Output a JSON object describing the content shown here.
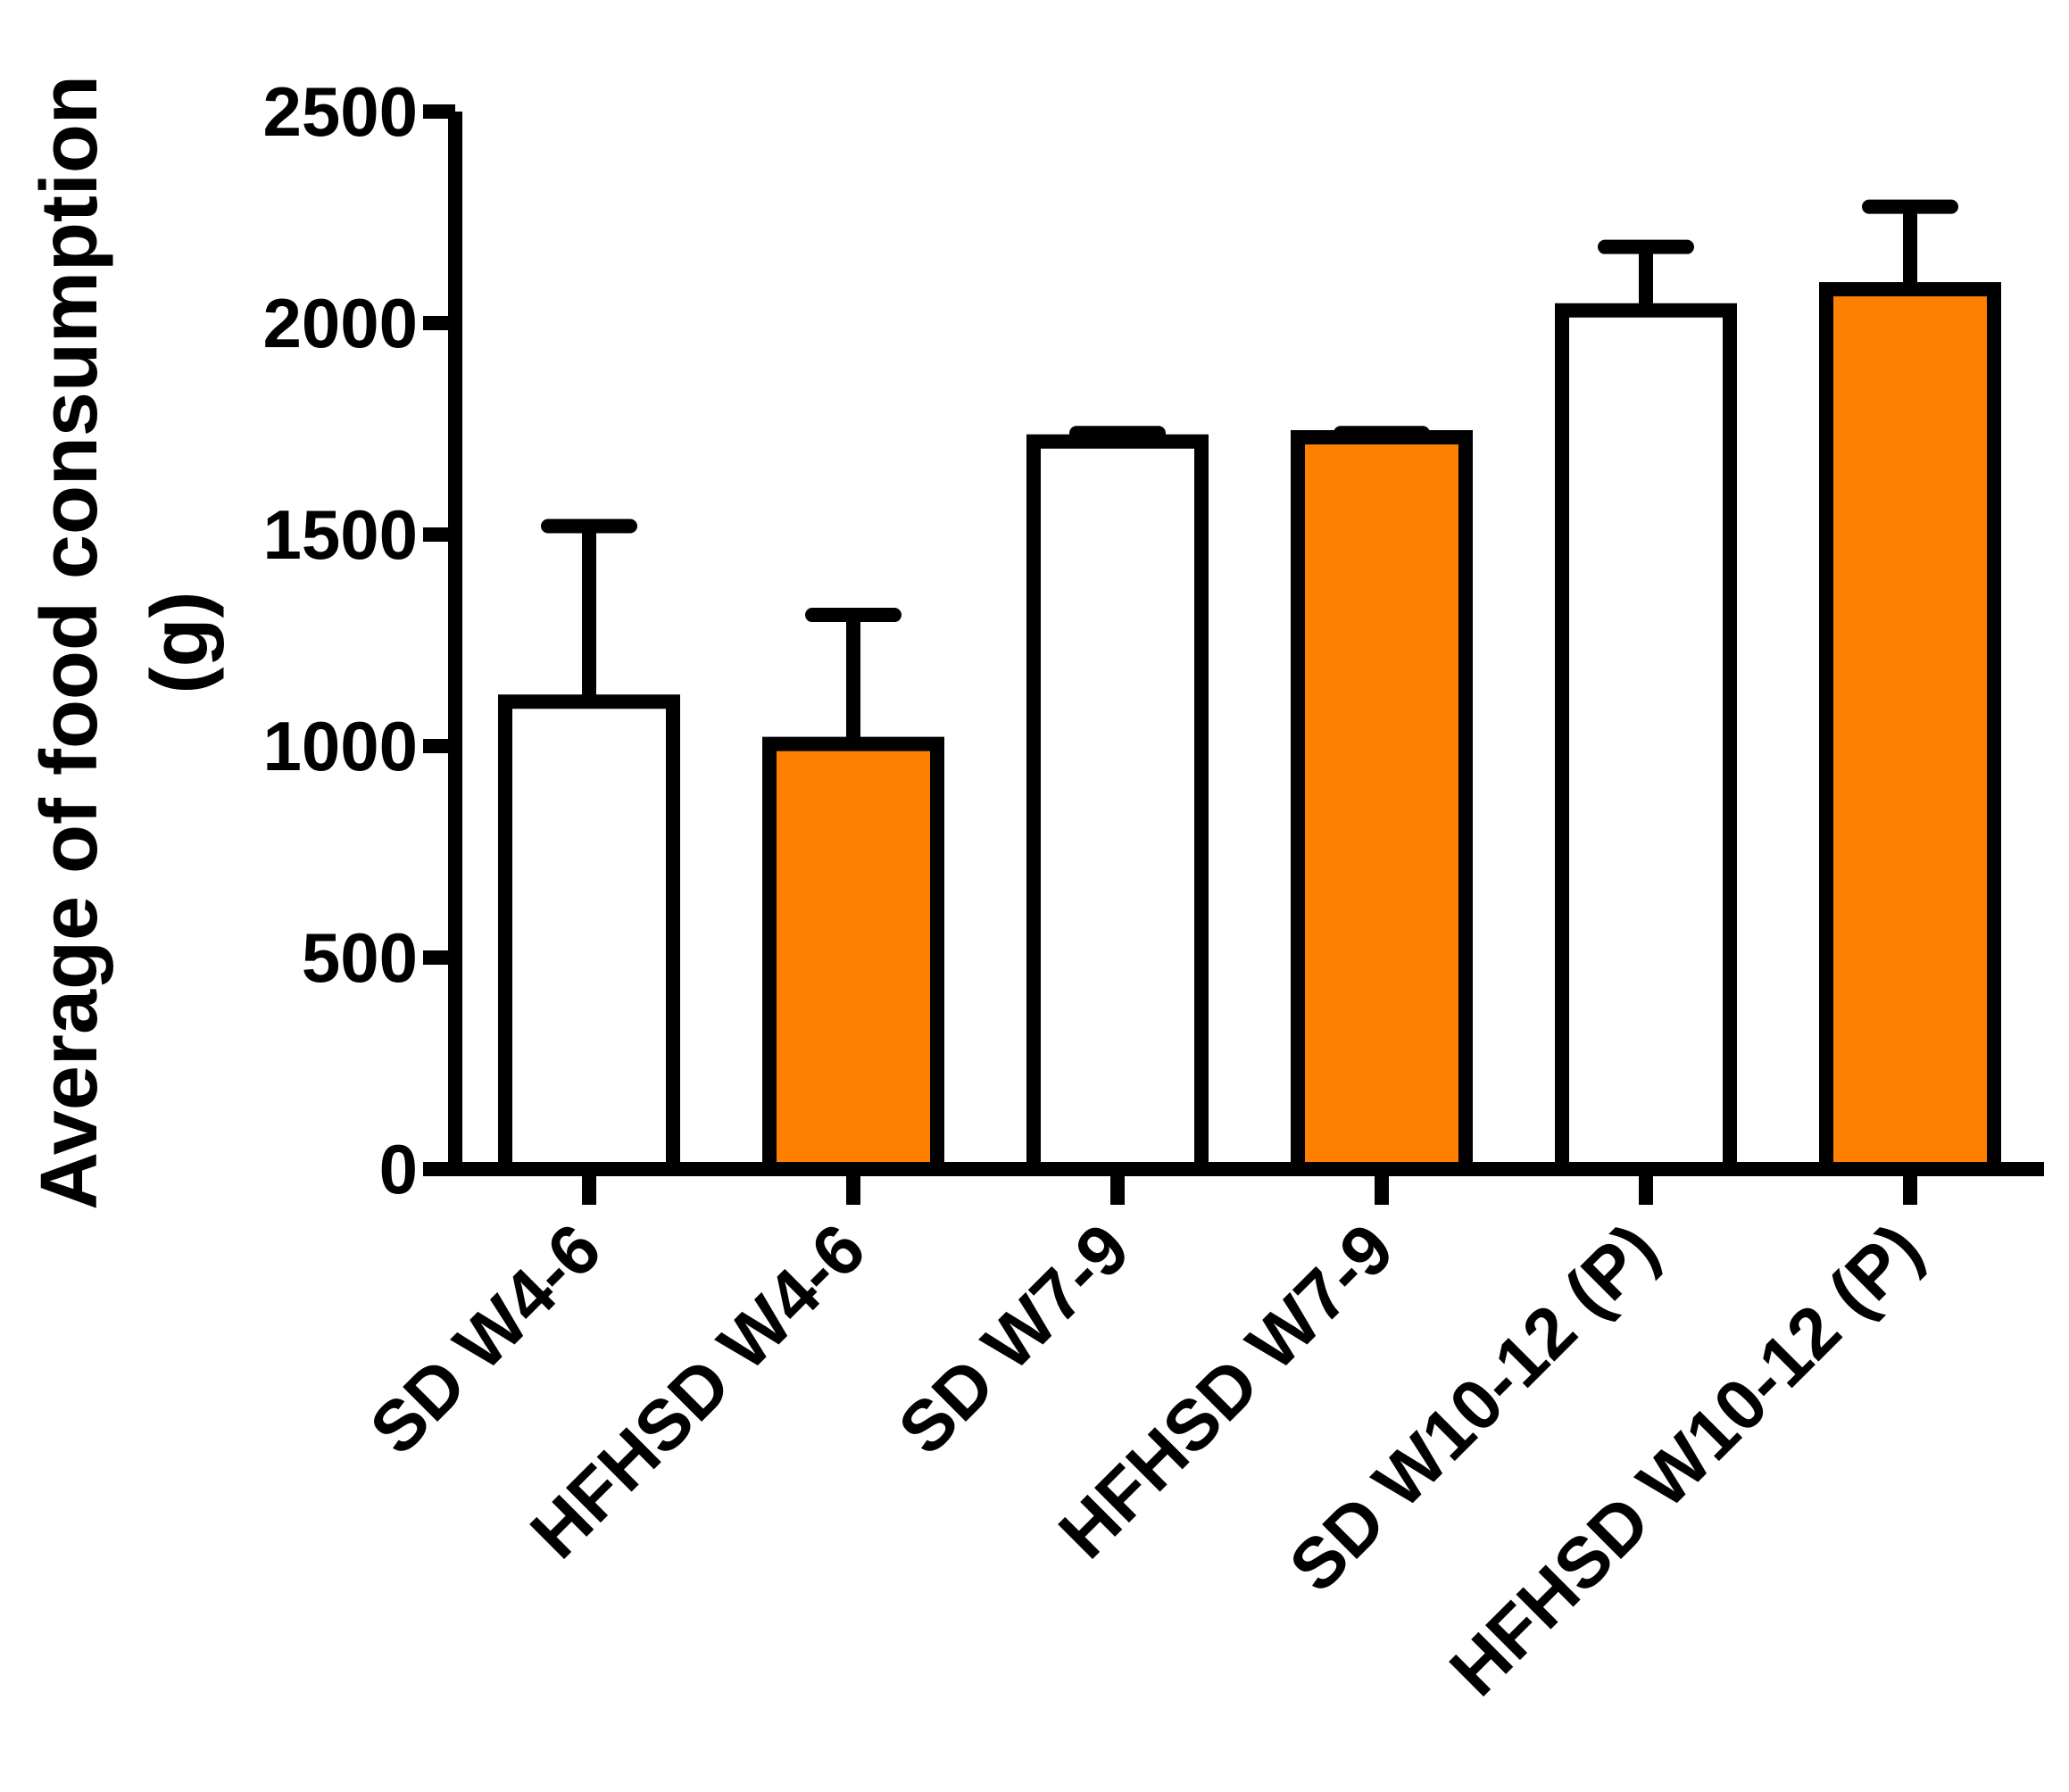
{
  "chart_data": {
    "type": "bar",
    "title": "",
    "xlabel": "",
    "ylabel_line1": "Average of food consumption",
    "ylabel_line2": "(g)",
    "ylim": [
      0,
      2500
    ],
    "yticks": [
      "0",
      "500",
      "1000",
      "1500",
      "2000",
      "2500"
    ],
    "grid": false,
    "legend": "none",
    "categories": [
      "SD W4-6",
      "HFHSD W4-6",
      "SD W7-9",
      "HFHSD W7-9",
      "SD W10-12 (P)",
      "HFHSD W10-12 (P)"
    ],
    "values": [
      1105,
      1005,
      1720,
      1730,
      2030,
      2080
    ],
    "errors": [
      415,
      305,
      20,
      10,
      150,
      195
    ],
    "fill_colors": [
      "#ffffff",
      "#ff8000",
      "#ffffff",
      "#ff8000",
      "#ffffff",
      "#ff8000"
    ],
    "stroke_color": "#000000"
  }
}
